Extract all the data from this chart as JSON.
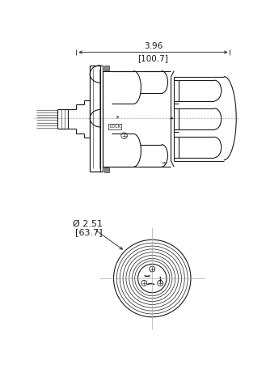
{
  "bg_color": "#ffffff",
  "line_color": "#1a1a1a",
  "dim_color": "#1a1a1a",
  "center_line_color": "#aaaaaa",
  "title_dim_top": "3.96",
  "title_dim_top_bracket": "[100.7]",
  "title_dim_bottom": "Ø 2.51",
  "title_dim_bottom_bracket": "[63.7]",
  "lock_label": "LOCK"
}
